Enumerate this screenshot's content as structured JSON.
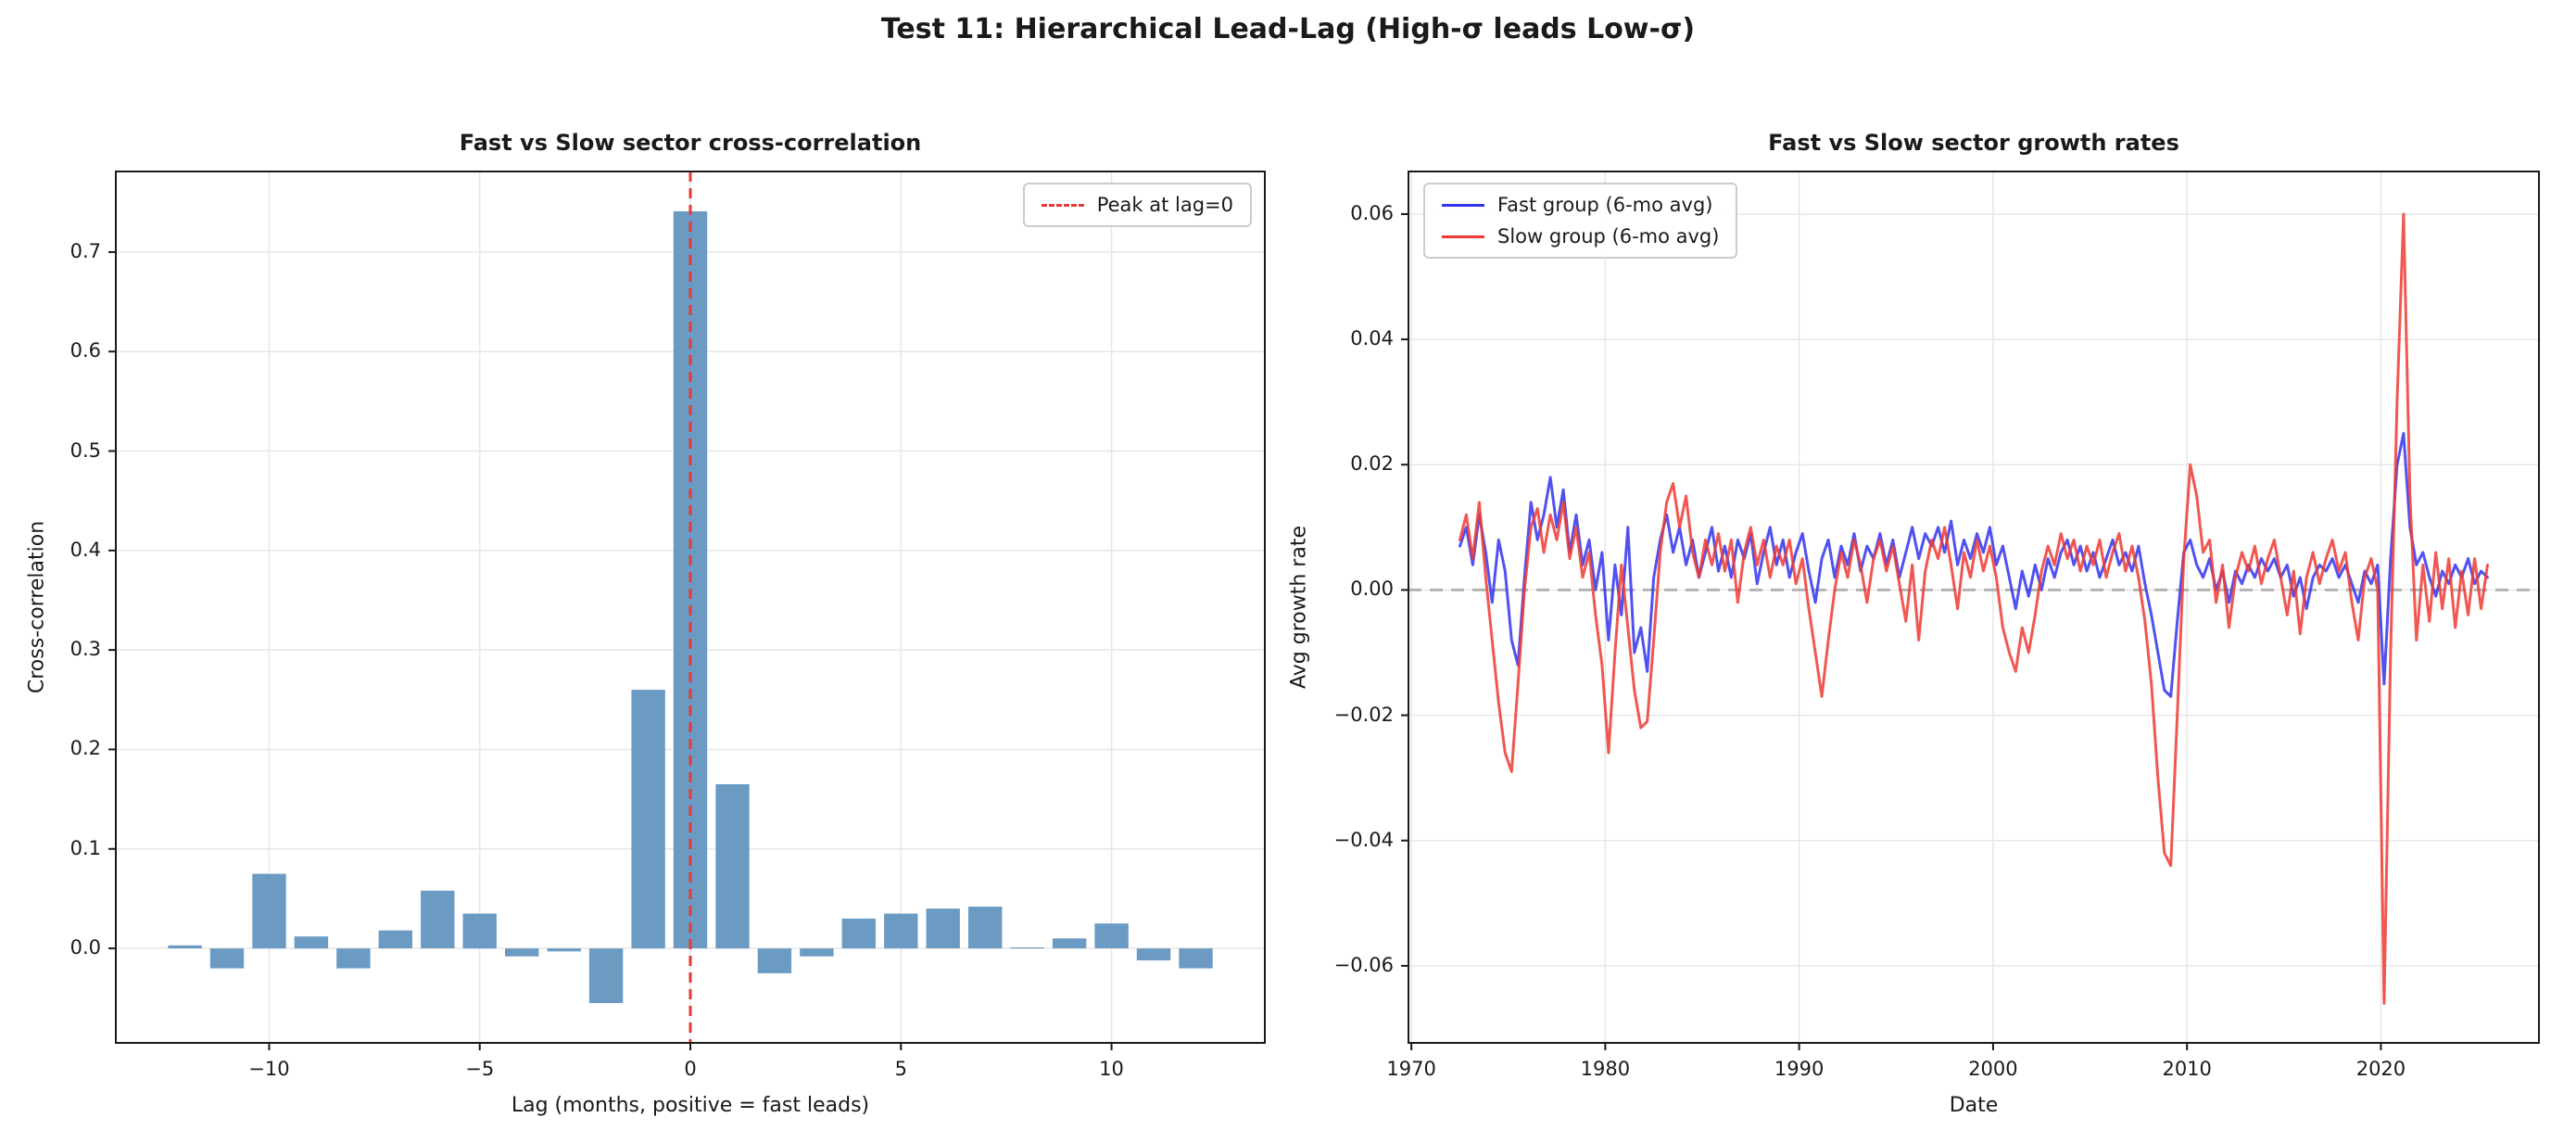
{
  "figure": {
    "title": "Test 11: Hierarchical Lead-Lag (High-σ leads Low-σ)",
    "background": "#ffffff"
  },
  "chart_data": [
    {
      "type": "bar",
      "title": "Fast vs Slow sector cross-correlation",
      "xlabel": "Lag (months, positive = fast leads)",
      "ylabel": "Cross-correlation",
      "bar_color": "#6b9bc3",
      "grid": true,
      "legend_position": "upper right",
      "categories": [
        -12,
        -11,
        -10,
        -9,
        -8,
        -7,
        -6,
        -5,
        -4,
        -3,
        -2,
        -1,
        0,
        1,
        2,
        3,
        4,
        5,
        6,
        7,
        8,
        9,
        10,
        11,
        12
      ],
      "values": [
        0.003,
        -0.02,
        0.075,
        0.012,
        -0.02,
        0.018,
        0.058,
        0.035,
        -0.008,
        -0.003,
        -0.055,
        0.26,
        0.741,
        0.165,
        -0.025,
        -0.008,
        0.03,
        0.035,
        0.04,
        0.042,
        0.001,
        0.01,
        0.025,
        -0.012,
        -0.02
      ],
      "xlim": [
        -13.64,
        13.64
      ],
      "ylim": [
        -0.095,
        0.781
      ],
      "xticks": [
        -10,
        -5,
        0,
        5,
        10
      ],
      "xtick_labels": [
        "−10",
        "−5",
        "0",
        "5",
        "10"
      ],
      "yticks": [
        0.0,
        0.1,
        0.2,
        0.3,
        0.4,
        0.5,
        0.6,
        0.7
      ],
      "ytick_labels": [
        "0.0",
        "0.1",
        "0.2",
        "0.3",
        "0.4",
        "0.5",
        "0.6",
        "0.7"
      ],
      "vline": {
        "x": 0,
        "color": "#e53935",
        "style": "dashed",
        "label": "Peak at lag=0"
      }
    },
    {
      "type": "line",
      "title": "Fast vs Slow sector growth rates",
      "xlabel": "Date",
      "ylabel": "Avg growth rate",
      "grid": true,
      "legend_position": "upper left",
      "x_start": 1972.5,
      "x_step": 0.333333,
      "xlim": [
        1969.85,
        2028.15
      ],
      "ylim": [
        -0.0723,
        0.0668
      ],
      "xticks": [
        1970,
        1980,
        1990,
        2000,
        2010,
        2020
      ],
      "xtick_labels": [
        "1970",
        "1980",
        "1990",
        "2000",
        "2010",
        "2020"
      ],
      "yticks": [
        -0.06,
        -0.04,
        -0.02,
        0.0,
        0.02,
        0.04,
        0.06
      ],
      "ytick_labels": [
        "−0.06",
        "−0.04",
        "−0.02",
        "0.00",
        "0.02",
        "0.04",
        "0.06"
      ],
      "hline": {
        "y": 0,
        "color": "#b3b3b3",
        "style": "dashed"
      },
      "series": [
        {
          "name": "Fast group (6-mo avg)",
          "color": "#3333ee",
          "values": [
            0.007,
            0.01,
            0.004,
            0.012,
            0.006,
            -0.002,
            0.008,
            0.003,
            -0.008,
            -0.012,
            0.002,
            0.014,
            0.008,
            0.012,
            0.018,
            0.01,
            0.016,
            0.006,
            0.012,
            0.004,
            0.008,
            0.0,
            0.006,
            -0.008,
            0.004,
            -0.004,
            0.01,
            -0.01,
            -0.006,
            -0.013,
            0.002,
            0.008,
            0.012,
            0.006,
            0.01,
            0.004,
            0.008,
            0.002,
            0.006,
            0.01,
            0.003,
            0.007,
            0.002,
            0.008,
            0.005,
            0.009,
            0.001,
            0.006,
            0.01,
            0.004,
            0.008,
            0.002,
            0.006,
            0.009,
            0.003,
            -0.002,
            0.005,
            0.008,
            0.002,
            0.007,
            0.004,
            0.009,
            0.003,
            0.007,
            0.005,
            0.009,
            0.004,
            0.008,
            0.002,
            0.006,
            0.01,
            0.005,
            0.009,
            0.007,
            0.01,
            0.006,
            0.011,
            0.004,
            0.008,
            0.005,
            0.009,
            0.006,
            0.01,
            0.004,
            0.007,
            0.002,
            -0.003,
            0.003,
            -0.001,
            0.004,
            0.0,
            0.005,
            0.002,
            0.006,
            0.008,
            0.004,
            0.007,
            0.003,
            0.006,
            0.002,
            0.005,
            0.008,
            0.004,
            0.006,
            0.003,
            0.007,
            0.001,
            -0.004,
            -0.01,
            -0.016,
            -0.017,
            -0.005,
            0.006,
            0.008,
            0.004,
            0.002,
            0.005,
            0.0,
            0.003,
            -0.002,
            0.003,
            0.001,
            0.004,
            0.002,
            0.005,
            0.003,
            0.005,
            0.002,
            0.004,
            -0.001,
            0.002,
            -0.003,
            0.002,
            0.004,
            0.003,
            0.005,
            0.002,
            0.004,
            0.001,
            -0.002,
            0.003,
            0.001,
            0.004,
            -0.015,
            0.005,
            0.02,
            0.025,
            0.01,
            0.004,
            0.006,
            0.002,
            -0.001,
            0.003,
            0.001,
            0.004,
            0.002,
            0.005,
            0.001,
            0.003,
            0.002
          ]
        },
        {
          "name": "Slow group (6-mo avg)",
          "color": "#ef3a33",
          "values": [
            0.008,
            0.012,
            0.005,
            0.014,
            0.002,
            -0.008,
            -0.018,
            -0.026,
            -0.029,
            -0.015,
            0.0,
            0.01,
            0.013,
            0.006,
            0.012,
            0.008,
            0.014,
            0.005,
            0.01,
            0.002,
            0.006,
            -0.004,
            -0.012,
            -0.026,
            -0.01,
            0.004,
            -0.006,
            -0.016,
            -0.022,
            -0.021,
            -0.008,
            0.006,
            0.014,
            0.017,
            0.01,
            0.015,
            0.006,
            0.002,
            0.008,
            0.004,
            0.009,
            0.003,
            0.008,
            -0.002,
            0.006,
            0.01,
            0.004,
            0.008,
            0.002,
            0.007,
            0.004,
            0.008,
            0.001,
            0.005,
            -0.003,
            -0.01,
            -0.017,
            -0.008,
            0.0,
            0.006,
            0.002,
            0.008,
            0.004,
            -0.002,
            0.005,
            0.008,
            0.003,
            0.007,
            0.001,
            -0.005,
            0.004,
            -0.008,
            0.003,
            0.008,
            0.005,
            0.01,
            0.004,
            -0.003,
            0.006,
            0.002,
            0.008,
            0.003,
            0.007,
            0.002,
            -0.006,
            -0.01,
            -0.013,
            -0.006,
            -0.01,
            -0.004,
            0.003,
            0.007,
            0.004,
            0.009,
            0.005,
            0.008,
            0.003,
            0.007,
            0.004,
            0.008,
            0.002,
            0.006,
            0.009,
            0.003,
            0.007,
            0.002,
            -0.005,
            -0.015,
            -0.03,
            -0.042,
            -0.044,
            -0.02,
            0.005,
            0.02,
            0.015,
            0.006,
            0.008,
            -0.002,
            0.004,
            -0.006,
            0.002,
            0.006,
            0.003,
            0.007,
            0.001,
            0.005,
            0.008,
            0.002,
            -0.004,
            0.003,
            -0.007,
            0.002,
            0.006,
            0.001,
            0.005,
            0.008,
            0.003,
            0.006,
            -0.002,
            -0.008,
            0.002,
            0.005,
            0.0,
            -0.066,
            -0.01,
            0.03,
            0.06,
            0.015,
            -0.008,
            0.004,
            -0.005,
            0.006,
            -0.003,
            0.005,
            -0.006,
            0.003,
            -0.004,
            0.005,
            -0.003,
            0.004
          ]
        }
      ]
    }
  ]
}
